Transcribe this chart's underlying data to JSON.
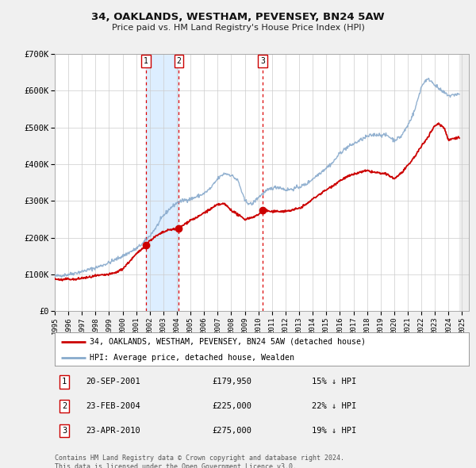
{
  "title": "34, OAKLANDS, WESTHAM, PEVENSEY, BN24 5AW",
  "subtitle": "Price paid vs. HM Land Registry's House Price Index (HPI)",
  "background_color": "#f0f0f0",
  "plot_bg_color": "#ffffff",
  "x_min": 1995.0,
  "x_max": 2025.5,
  "y_min": 0,
  "y_max": 700000,
  "yticks": [
    0,
    100000,
    200000,
    300000,
    400000,
    500000,
    600000,
    700000
  ],
  "ytick_labels": [
    "£0",
    "£100K",
    "£200K",
    "£300K",
    "£400K",
    "£500K",
    "£600K",
    "£700K"
  ],
  "sale_dates": [
    2001.72,
    2004.14,
    2010.31
  ],
  "sale_prices": [
    179950,
    225000,
    275000
  ],
  "sale_labels": [
    "1",
    "2",
    "3"
  ],
  "vline_color": "#dd0000",
  "sale_dot_color": "#cc0000",
  "hpi_line_color": "#88aacc",
  "price_line_color": "#cc0000",
  "shading_color": "#ddeeff",
  "legend_address": "34, OAKLANDS, WESTHAM, PEVENSEY, BN24 5AW (detached house)",
  "legend_hpi": "HPI: Average price, detached house, Wealden",
  "table_rows": [
    {
      "label": "1",
      "date": "20-SEP-2001",
      "price": "£179,950",
      "hpi": "15% ↓ HPI"
    },
    {
      "label": "2",
      "date": "23-FEB-2004",
      "price": "£225,000",
      "hpi": "22% ↓ HPI"
    },
    {
      "label": "3",
      "date": "23-APR-2010",
      "price": "£275,000",
      "hpi": "19% ↓ HPI"
    }
  ],
  "footer": "Contains HM Land Registry data © Crown copyright and database right 2024.\nThis data is licensed under the Open Government Licence v3.0.",
  "grid_color": "#cccccc",
  "xticks": [
    1995,
    1996,
    1997,
    1998,
    1999,
    2000,
    2001,
    2002,
    2003,
    2004,
    2005,
    2006,
    2007,
    2008,
    2009,
    2010,
    2011,
    2012,
    2013,
    2014,
    2015,
    2016,
    2017,
    2018,
    2019,
    2020,
    2021,
    2022,
    2023,
    2024,
    2025
  ]
}
